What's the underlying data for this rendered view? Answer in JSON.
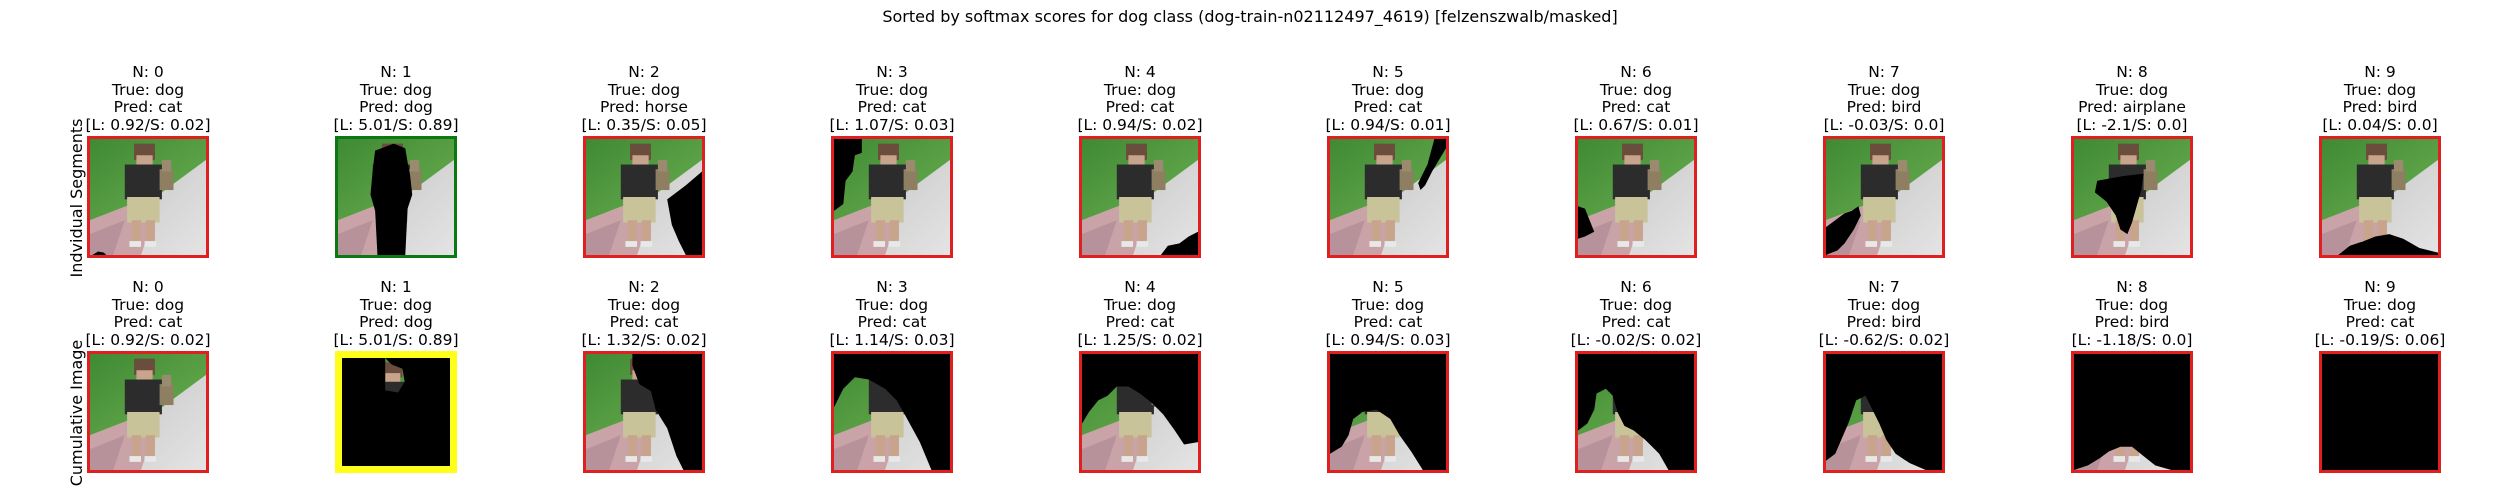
{
  "title": "Sorted by softmax scores for dog class (dog-train-n02112497_4619) [felzenszwalb/masked]",
  "rows": [
    {
      "label": "Indvidual Segments",
      "panels": [
        {
          "n": "N: 0",
          "true": "True: dog",
          "pred": "Pred: cat",
          "score": "[L: 0.92/S: 0.02]",
          "frame": "red"
        },
        {
          "n": "N: 1",
          "true": "True: dog",
          "pred": "Pred: dog",
          "score": "[L: 5.01/S: 0.89]",
          "frame": "green"
        },
        {
          "n": "N: 2",
          "true": "True: dog",
          "pred": "Pred: horse",
          "score": "[L: 0.35/S: 0.05]",
          "frame": "red"
        },
        {
          "n": "N: 3",
          "true": "True: dog",
          "pred": "Pred: cat",
          "score": "[L: 1.07/S: 0.03]",
          "frame": "red"
        },
        {
          "n": "N: 4",
          "true": "True: dog",
          "pred": "Pred: cat",
          "score": "[L: 0.94/S: 0.02]",
          "frame": "red"
        },
        {
          "n": "N: 5",
          "true": "True: dog",
          "pred": "Pred: cat",
          "score": "[L: 0.94/S: 0.01]",
          "frame": "red"
        },
        {
          "n": "N: 6",
          "true": "True: dog",
          "pred": "Pred: cat",
          "score": "[L: 0.67/S: 0.01]",
          "frame": "red"
        },
        {
          "n": "N: 7",
          "true": "True: dog",
          "pred": "Pred: bird",
          "score": "[L: -0.03/S: 0.0]",
          "frame": "red"
        },
        {
          "n": "N: 8",
          "true": "True: dog",
          "pred": "Pred: airplane",
          "score": "[L: -2.1/S: 0.0]",
          "frame": "red"
        },
        {
          "n": "N: 9",
          "true": "True: dog",
          "pred": "Pred: bird",
          "score": "[L: 0.04/S: 0.0]",
          "frame": "red"
        }
      ]
    },
    {
      "label": "Cumulative Image",
      "panels": [
        {
          "n": "N: 0",
          "true": "True: dog",
          "pred": "Pred: cat",
          "score": "[L: 0.92/S: 0.02]",
          "frame": "red"
        },
        {
          "n": "N: 1",
          "true": "True: dog",
          "pred": "Pred: dog",
          "score": "[L: 5.01/S: 0.89]",
          "frame": "yellow"
        },
        {
          "n": "N: 2",
          "true": "True: dog",
          "pred": "Pred: cat",
          "score": "[L: 1.32/S: 0.02]",
          "frame": "red"
        },
        {
          "n": "N: 3",
          "true": "True: dog",
          "pred": "Pred: cat",
          "score": "[L: 1.14/S: 0.03]",
          "frame": "red"
        },
        {
          "n": "N: 4",
          "true": "True: dog",
          "pred": "Pred: cat",
          "score": "[L: 1.25/S: 0.02]",
          "frame": "red"
        },
        {
          "n": "N: 5",
          "true": "True: dog",
          "pred": "Pred: cat",
          "score": "[L: 0.94/S: 0.03]",
          "frame": "red"
        },
        {
          "n": "N: 6",
          "true": "True: dog",
          "pred": "Pred: cat",
          "score": "[L: -0.02/S: 0.02]",
          "frame": "red"
        },
        {
          "n": "N: 7",
          "true": "True: dog",
          "pred": "Pred: bird",
          "score": "[L: -0.62/S: 0.02]",
          "frame": "red"
        },
        {
          "n": "N: 8",
          "true": "True: dog",
          "pred": "Pred: bird",
          "score": "[L: -1.18/S: 0.0]",
          "frame": "red"
        },
        {
          "n": "N: 9",
          "true": "True: dog",
          "pred": "Pred: cat",
          "score": "[L: -0.19/S: 0.06]",
          "frame": "red"
        }
      ]
    }
  ],
  "colors": {
    "frame_red": "#e02020",
    "frame_green": "#0a7a10",
    "frame_yellow": "#ffff1a",
    "grass": "#4f9a3c",
    "pavement": "#d4d4d4",
    "path": "#c9a3a8",
    "mask": "#000000"
  }
}
